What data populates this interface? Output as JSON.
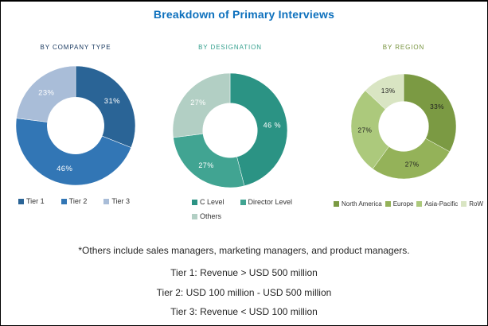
{
  "title": "Breakdown of Primary Interviews",
  "title_color": "#0d70bd",
  "footnote": "*Others include sales managers, marketing managers, and product managers.",
  "tier_notes": [
    "Tier 1: Revenue > USD 500 million",
    "Tier 2: USD 100 million - USD 500 million",
    "Tier 3: Revenue < USD 100 million"
  ],
  "chart_data": [
    {
      "type": "pie",
      "subtype": "donut",
      "title": "BY COMPANY TYPE",
      "title_color": "#17375e",
      "categories": [
        "Tier 1",
        "Tier 2",
        "Tier 3"
      ],
      "values": [
        31,
        46,
        23
      ],
      "labels": [
        "31%",
        "46%",
        "23%"
      ],
      "colors": [
        "#2a6496",
        "#3276b5",
        "#a9bdd8"
      ],
      "label_color": "#ffffff",
      "start_angle": "top",
      "direction": "clockwise",
      "legend_position": "bottom"
    },
    {
      "type": "pie",
      "subtype": "donut",
      "title": "BY DESIGNATION",
      "title_color": "#35a08e",
      "categories": [
        "C Level",
        "Director Level",
        "Others"
      ],
      "values": [
        46,
        27,
        27
      ],
      "labels": [
        "46 %",
        "27%",
        "27%"
      ],
      "colors": [
        "#2b9384",
        "#41a492",
        "#b2cfc4"
      ],
      "label_color": "#ffffff",
      "start_angle": "top",
      "direction": "clockwise",
      "legend_position": "bottom"
    },
    {
      "type": "pie",
      "subtype": "donut",
      "title": "BY REGION",
      "title_color": "#76923c",
      "categories": [
        "North America",
        "Europe",
        "Asia-Pacific",
        "RoW"
      ],
      "values": [
        33,
        27,
        27,
        13
      ],
      "labels": [
        "33%",
        "27%",
        "27%",
        "13%"
      ],
      "colors": [
        "#7b9a43",
        "#94b259",
        "#acc97c",
        "#d9e5c3"
      ],
      "label_color": "#1f1f1f",
      "start_angle": "top",
      "direction": "clockwise",
      "legend_position": "bottom"
    }
  ]
}
